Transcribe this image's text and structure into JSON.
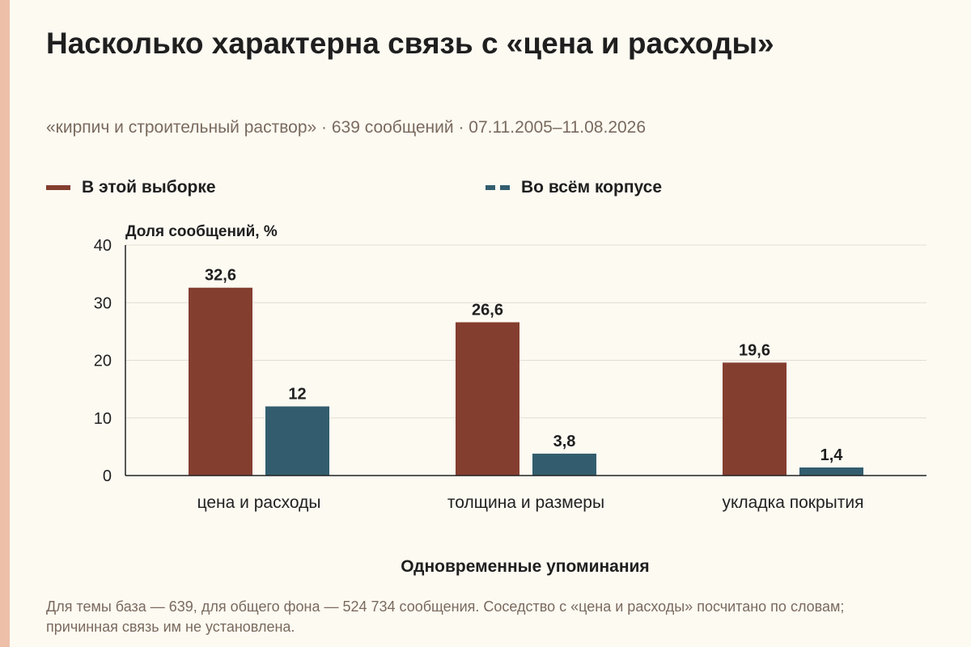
{
  "title": "Насколько характерна связь с «цена и расходы»",
  "subtitle": "«кирпич и строительный раствор» · 639 сообщений · 07.11.2005–11.08.2026",
  "footnote": "Для темы база — 639, для общего фона — 524 734 сообщения. Соседство с «цена и расходы» посчитано по словам; причинная связь им не установлена.",
  "colors": {
    "background": "#fdfaf2",
    "stripe": "#eebfa8",
    "sample": "#843e2f",
    "corpus": "#335d6e",
    "grid": "#e2ddd2",
    "axis": "#222222"
  },
  "chart_data": {
    "type": "bar",
    "title": "Насколько характерна связь с «цена и расходы»",
    "xlabel": "Одновременные упоминания",
    "ylabel": "Доля сообщений, %",
    "ylim": [
      0,
      40
    ],
    "yticks": [
      0,
      10,
      20,
      30,
      40
    ],
    "grid": true,
    "legend_position": "top",
    "categories": [
      "цена и расходы",
      "толщина и размеры",
      "укладка покрытия"
    ],
    "series": [
      {
        "name": "В этой выборке",
        "color": "#843e2f",
        "values": [
          32.6,
          26.6,
          19.6
        ],
        "labels": [
          "32,6",
          "26,6",
          "19,6"
        ]
      },
      {
        "name": "Во всём корпусе",
        "color": "#335d6e",
        "values": [
          12,
          3.8,
          1.4
        ],
        "labels": [
          "12",
          "3,8",
          "1,4"
        ]
      }
    ]
  }
}
